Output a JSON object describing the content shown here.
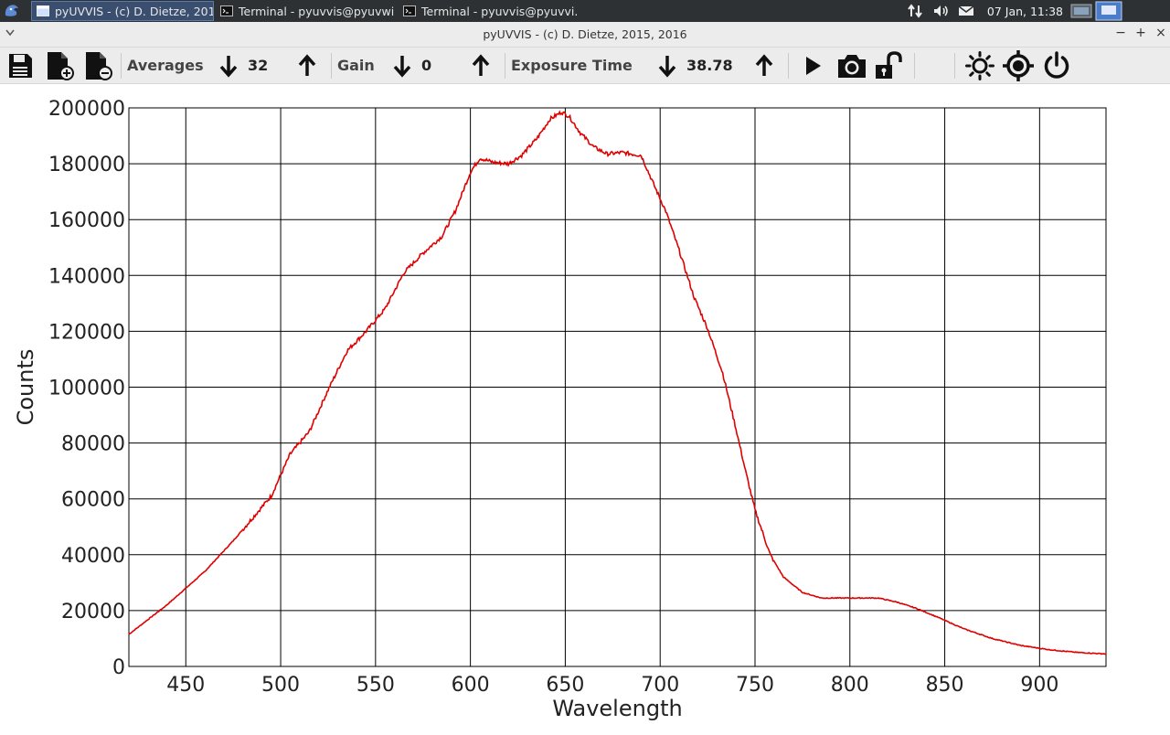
{
  "taskbar": {
    "tasks": [
      {
        "label": "pyUVVIS - (c) D. Dietze, 201...",
        "active": true
      },
      {
        "label": "Terminal - pyuvvis@pyuvwi...",
        "active": false
      },
      {
        "label": "Terminal - pyuvvis@pyuvvi...",
        "active": false
      }
    ],
    "clock": "07 Jan, 11:38",
    "icons": [
      "whisker-menu-icon",
      "network-icon",
      "volume-icon",
      "mail-icon",
      "workspace-icon"
    ]
  },
  "window": {
    "title": "pyUVVIS - (c) D. Dietze, 2015, 2016",
    "controls": [
      "−",
      "+",
      "×"
    ]
  },
  "toolbar": {
    "averages_label": "Averages",
    "averages_value": "32",
    "gain_label": "Gain",
    "gain_value": "0",
    "exposure_label": "Exposure Time",
    "exposure_value": "38.78",
    "icons": [
      "save-icon",
      "add-file-icon",
      "remove-file-icon",
      "arrow-down-icon",
      "arrow-up-icon",
      "play-icon",
      "camera-icon",
      "unlock-icon",
      "brightness-icon",
      "target-icon",
      "power-icon"
    ]
  },
  "chart_data": {
    "type": "line",
    "title": "",
    "xlabel": "Wavelength",
    "ylabel": "Counts",
    "xlim": [
      420,
      935
    ],
    "ylim": [
      0,
      200000
    ],
    "x_ticks": [
      450,
      500,
      550,
      600,
      650,
      700,
      750,
      800,
      850,
      900
    ],
    "y_ticks": [
      0,
      20000,
      40000,
      60000,
      80000,
      100000,
      120000,
      140000,
      160000,
      180000,
      200000
    ],
    "grid": true,
    "line_color": "#e00000",
    "series": [
      {
        "x": [
          420,
          440,
          460,
          475,
          485,
          495,
          505,
          515,
          525,
          535,
          545,
          555,
          565,
          575,
          585,
          592,
          600,
          605,
          612,
          620,
          627,
          635,
          642,
          648,
          652,
          658,
          665,
          672,
          680,
          690,
          697,
          703,
          710,
          718,
          725,
          733,
          740,
          745,
          750,
          758,
          765,
          775,
          785,
          795,
          805,
          815,
          825,
          835,
          845,
          860,
          875,
          890,
          905,
          920,
          935
        ],
        "y": [
          11500,
          22000,
          34000,
          45000,
          53000,
          61000,
          76000,
          84000,
          99000,
          113000,
          120000,
          128000,
          141000,
          148000,
          154000,
          163000,
          177000,
          182000,
          180500,
          180000,
          183000,
          189000,
          196000,
          198500,
          197000,
          191000,
          186000,
          183500,
          184000,
          183000,
          172000,
          163000,
          149000,
          132000,
          121000,
          105000,
          85000,
          70000,
          56000,
          40000,
          32000,
          26500,
          24500,
          24500,
          24500,
          24500,
          23000,
          20800,
          18000,
          13500,
          10000,
          7500,
          6000,
          5000,
          4500
        ]
      }
    ]
  }
}
